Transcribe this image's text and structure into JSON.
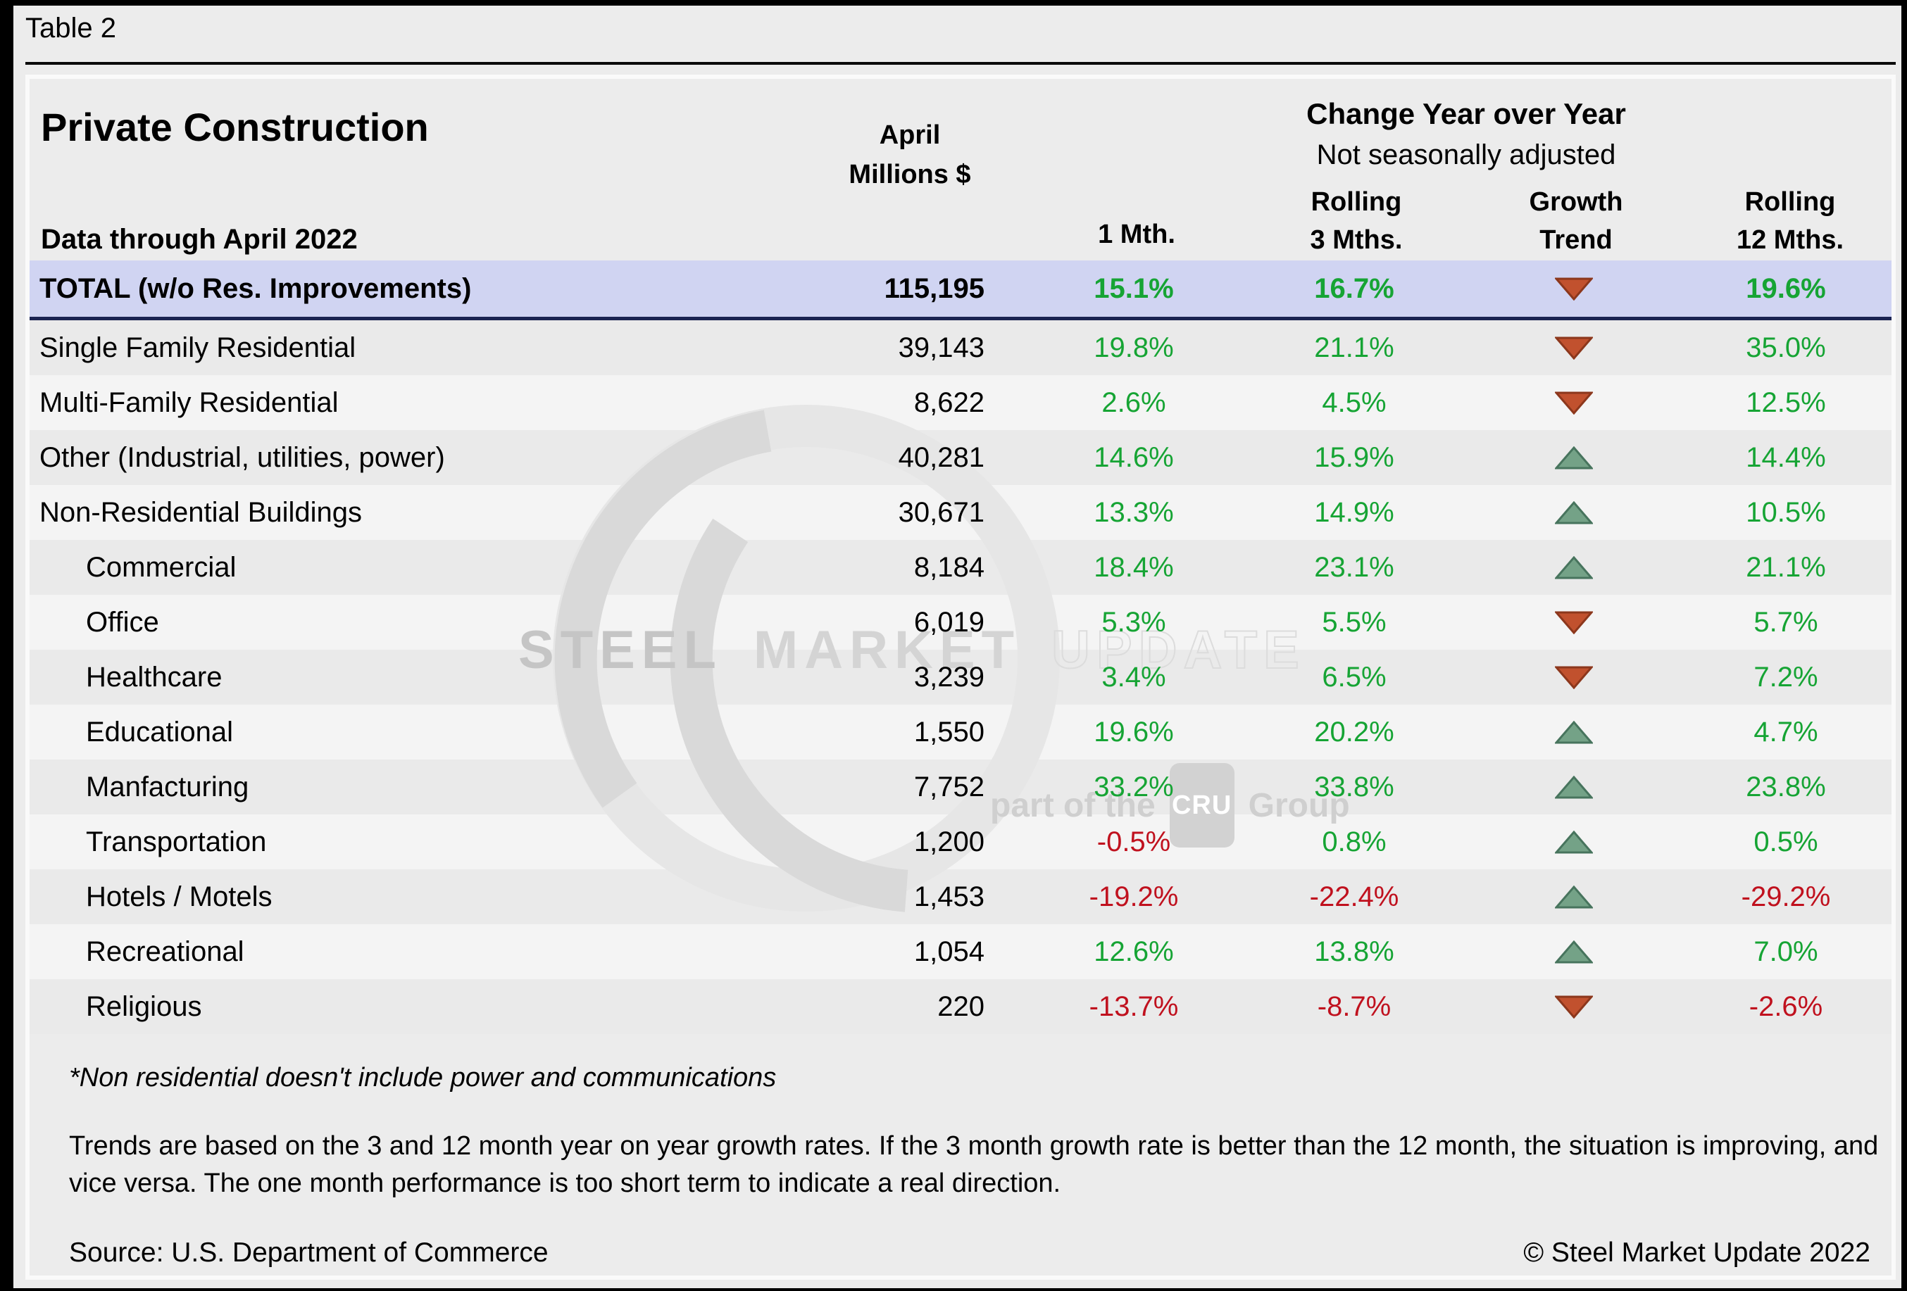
{
  "page": {
    "tag": "Table 2",
    "title": "Private Construction",
    "subtitle": "Data through April 2022"
  },
  "header": {
    "col_april_line1": "April",
    "col_april_line2": "Millions $",
    "col_1mth": "1 Mth.",
    "group_header": "Change Year over Year",
    "group_subheader": "Not seasonally adjusted",
    "col_roll3_line1": "Rolling",
    "col_roll3_line2": "3 Mths.",
    "col_trend_line1": "Growth",
    "col_trend_line2": "Trend",
    "col_roll12_line1": "Rolling",
    "col_roll12_line2": "12 Mths."
  },
  "chart_data": {
    "type": "table",
    "title": "Private Construction",
    "columns": [
      "Category",
      "April Millions $",
      "1 Mth.",
      "Rolling 3 Mths.",
      "Growth Trend",
      "Rolling 12 Mths."
    ],
    "total_row": {
      "label": "TOTAL (w/o Res. Improvements)",
      "millions": "115,195",
      "m1": "15.1%",
      "r3": "16.7%",
      "trend": "down",
      "r12": "19.6%"
    },
    "rows": [
      {
        "label": "Single Family Residential",
        "indent": false,
        "millions": "39,143",
        "m1": "19.8%",
        "r3": "21.1%",
        "trend": "down",
        "r12": "35.0%"
      },
      {
        "label": "Multi-Family Residential",
        "indent": false,
        "millions": "8,622",
        "m1": "2.6%",
        "r3": "4.5%",
        "trend": "down",
        "r12": "12.5%"
      },
      {
        "label": "Other (Industrial, utilities, power)",
        "indent": false,
        "millions": "40,281",
        "m1": "14.6%",
        "r3": "15.9%",
        "trend": "up",
        "r12": "14.4%"
      },
      {
        "label": "Non-Residential Buildings",
        "indent": false,
        "millions": "30,671",
        "m1": "13.3%",
        "r3": "14.9%",
        "trend": "up",
        "r12": "10.5%"
      },
      {
        "label": "Commercial",
        "indent": true,
        "millions": "8,184",
        "m1": "18.4%",
        "r3": "23.1%",
        "trend": "up",
        "r12": "21.1%"
      },
      {
        "label": "Office",
        "indent": true,
        "millions": "6,019",
        "m1": "5.3%",
        "r3": "5.5%",
        "trend": "down",
        "r12": "5.7%"
      },
      {
        "label": "Healthcare",
        "indent": true,
        "millions": "3,239",
        "m1": "3.4%",
        "r3": "6.5%",
        "trend": "down",
        "r12": "7.2%"
      },
      {
        "label": "Educational",
        "indent": true,
        "millions": "1,550",
        "m1": "19.6%",
        "r3": "20.2%",
        "trend": "up",
        "r12": "4.7%"
      },
      {
        "label": "Manfacturing",
        "indent": true,
        "millions": "7,752",
        "m1": "33.2%",
        "r3": "33.8%",
        "trend": "up",
        "r12": "23.8%"
      },
      {
        "label": "Transportation",
        "indent": true,
        "millions": "1,200",
        "m1": "-0.5%",
        "r3": "0.8%",
        "trend": "up",
        "r12": "0.5%"
      },
      {
        "label": "Hotels / Motels",
        "indent": true,
        "millions": "1,453",
        "m1": "-19.2%",
        "r3": "-22.4%",
        "trend": "up",
        "r12": "-29.2%"
      },
      {
        "label": "Recreational",
        "indent": true,
        "millions": "1,054",
        "m1": "12.6%",
        "r3": "13.8%",
        "trend": "up",
        "r12": "7.0%"
      },
      {
        "label": "Religious",
        "indent": true,
        "millions": "220",
        "m1": "-13.7%",
        "r3": "-8.7%",
        "trend": "down",
        "r12": "-2.6%"
      }
    ]
  },
  "watermark": {
    "word1": "STEEL",
    "word2": "MARKET",
    "word3": "UPDATE",
    "tagline_pre": "part of the",
    "tagline_box": "CRU",
    "tagline_post": "Group"
  },
  "footer": {
    "footnote": "*Non residential doesn't include power and communications",
    "trend_note": "Trends are based on the 3 and 12 month year on year growth rates. If the 3 month growth rate is better than the 12 month, the situation is improving, and vice versa. The one month performance is too short term to indicate a real direction.",
    "source": "Source: U.S. Department of Commerce",
    "copyright": "© Steel Market Update 2022"
  },
  "colors": {
    "positive_text": "#16a434",
    "negative_text": "#c0111e",
    "total_row_bg": "#d0d4f2",
    "total_row_border": "#1b2452",
    "row_dark": "#eaeaea",
    "row_light": "#f4f4f4",
    "panel_bg": "#ececec",
    "arrow_down_fill": "#c1512e",
    "arrow_down_stroke": "#8c371c",
    "arrow_up_fill": "#74a287",
    "arrow_up_stroke": "#47745d"
  }
}
